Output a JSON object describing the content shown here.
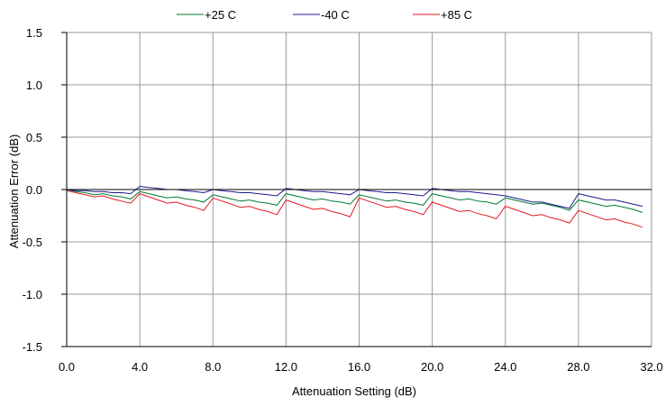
{
  "chart_data": {
    "type": "line",
    "title": "",
    "xlabel": "Attenuation Setting (dB)",
    "ylabel": "Attenuation Error (dB)",
    "xlim": [
      0,
      32
    ],
    "ylim": [
      -1.5,
      1.5
    ],
    "x_ticks": [
      "0.0",
      "4.0",
      "8.0",
      "12.0",
      "16.0",
      "20.0",
      "24.0",
      "28.0",
      "32.0"
    ],
    "y_ticks": [
      "1.5",
      "1.0",
      "0.5",
      "0.0",
      "-0.5",
      "-1.0",
      "-1.5"
    ],
    "grid": true,
    "legend_position": "top",
    "x": [
      0,
      0.5,
      1,
      1.5,
      2,
      2.5,
      3,
      3.5,
      4,
      4.5,
      5,
      5.5,
      6,
      6.5,
      7,
      7.5,
      8,
      8.5,
      9,
      9.5,
      10,
      10.5,
      11,
      11.5,
      12,
      12.5,
      13,
      13.5,
      14,
      14.5,
      15,
      15.5,
      16,
      16.5,
      17,
      17.5,
      18,
      18.5,
      19,
      19.5,
      20,
      20.5,
      21,
      21.5,
      22,
      22.5,
      23,
      23.5,
      24,
      24.5,
      25,
      25.5,
      26,
      26.5,
      27,
      27.5,
      28,
      28.5,
      29,
      29.5,
      30,
      30.5,
      31,
      31.5
    ],
    "series": [
      {
        "name": "+25 C",
        "color": "#007a33",
        "values": [
          0,
          -0.02,
          -0.03,
          -0.05,
          -0.04,
          -0.06,
          -0.07,
          -0.09,
          -0.02,
          -0.04,
          -0.06,
          -0.08,
          -0.07,
          -0.09,
          -0.1,
          -0.12,
          -0.05,
          -0.07,
          -0.09,
          -0.11,
          -0.1,
          -0.12,
          -0.13,
          -0.15,
          -0.04,
          -0.06,
          -0.08,
          -0.1,
          -0.09,
          -0.11,
          -0.12,
          -0.14,
          -0.05,
          -0.07,
          -0.09,
          -0.11,
          -0.1,
          -0.12,
          -0.13,
          -0.15,
          -0.04,
          -0.06,
          -0.08,
          -0.1,
          -0.09,
          -0.11,
          -0.12,
          -0.14,
          -0.08,
          -0.1,
          -0.12,
          -0.14,
          -0.13,
          -0.15,
          -0.17,
          -0.2,
          -0.1,
          -0.12,
          -0.14,
          -0.16,
          -0.15,
          -0.17,
          -0.19,
          -0.22
        ]
      },
      {
        "name": "-40 C",
        "color": "#1a1a8c",
        "values": [
          0,
          -0.01,
          -0.01,
          -0.02,
          -0.02,
          -0.03,
          -0.03,
          -0.04,
          0.03,
          0.02,
          0.01,
          0,
          0,
          -0.01,
          -0.02,
          -0.03,
          0,
          -0.01,
          -0.02,
          -0.03,
          -0.03,
          -0.04,
          -0.05,
          -0.06,
          0.01,
          0,
          -0.01,
          -0.02,
          -0.02,
          -0.03,
          -0.04,
          -0.05,
          0,
          -0.01,
          -0.02,
          -0.03,
          -0.03,
          -0.04,
          -0.05,
          -0.06,
          0.01,
          0,
          -0.01,
          -0.02,
          -0.02,
          -0.03,
          -0.04,
          -0.05,
          -0.06,
          -0.08,
          -0.1,
          -0.12,
          -0.12,
          -0.14,
          -0.16,
          -0.18,
          -0.04,
          -0.06,
          -0.08,
          -0.1,
          -0.1,
          -0.12,
          -0.14,
          -0.16
        ]
      },
      {
        "name": "+85 C",
        "color": "#e31b23",
        "values": [
          -0.01,
          -0.03,
          -0.05,
          -0.07,
          -0.06,
          -0.09,
          -0.11,
          -0.13,
          -0.04,
          -0.07,
          -0.1,
          -0.13,
          -0.12,
          -0.15,
          -0.17,
          -0.2,
          -0.08,
          -0.11,
          -0.14,
          -0.17,
          -0.16,
          -0.19,
          -0.21,
          -0.24,
          -0.1,
          -0.13,
          -0.16,
          -0.19,
          -0.18,
          -0.21,
          -0.23,
          -0.26,
          -0.08,
          -0.11,
          -0.14,
          -0.17,
          -0.16,
          -0.19,
          -0.21,
          -0.24,
          -0.12,
          -0.15,
          -0.18,
          -0.21,
          -0.2,
          -0.23,
          -0.25,
          -0.28,
          -0.16,
          -0.19,
          -0.22,
          -0.25,
          -0.24,
          -0.27,
          -0.29,
          -0.32,
          -0.2,
          -0.23,
          -0.26,
          -0.29,
          -0.28,
          -0.31,
          -0.33,
          -0.36
        ]
      }
    ]
  }
}
